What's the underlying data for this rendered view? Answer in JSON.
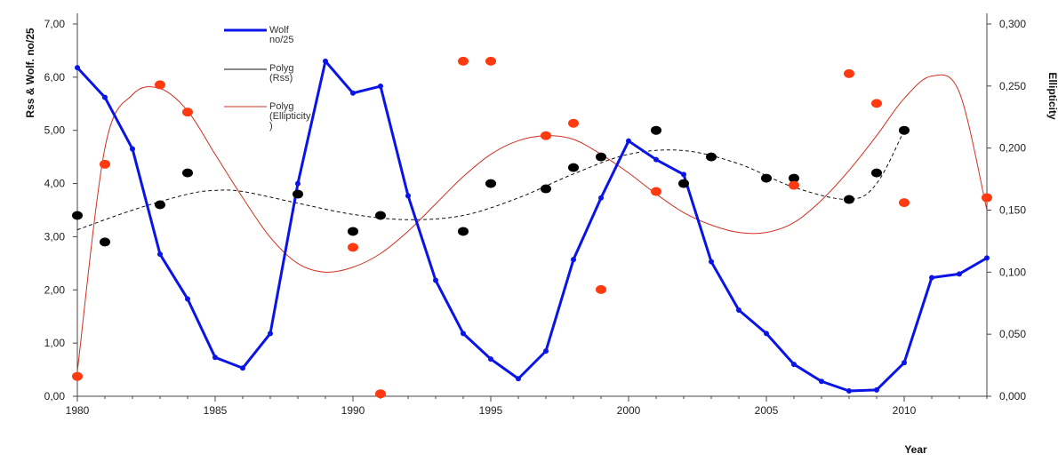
{
  "chart_data": {
    "type": "line",
    "x_axis": {
      "label": "Year",
      "min": 1980,
      "max": 2013,
      "ticks": [
        "1980",
        "1985",
        "1990",
        "1995",
        "2000",
        "2005",
        "2010"
      ]
    },
    "y_left": {
      "label": "Rss & Wolf. no/25",
      "min": 0,
      "max": 7,
      "ticks": [
        "0,00",
        "1,00",
        "2,00",
        "3,00",
        "4,00",
        "5,00",
        "6,00",
        "7,00"
      ]
    },
    "y_right": {
      "label": "Ellipticity",
      "min": 0,
      "max": 0.3,
      "ticks": [
        "0,000",
        "0,050",
        "0,100",
        "0,150",
        "0,200",
        "0,250",
        "0,300"
      ]
    },
    "legend": [
      {
        "line1": "Wolf",
        "line2": "no/25",
        "color": "#0a14e6"
      },
      {
        "line1": "Polyg",
        "line2": "(Rss)",
        "color": "#111111"
      },
      {
        "line1": "Polyg",
        "line2": "(Ellipticity",
        "line3": ")",
        "color": "#d03020"
      }
    ],
    "series": [
      {
        "name": "Wolf no/25",
        "axis": "left",
        "color": "#0a14e6",
        "x": [
          1980,
          1981,
          1982,
          1983,
          1984,
          1985,
          1986,
          1987,
          1988,
          1989,
          1990,
          1991,
          1992,
          1993,
          1994,
          1995,
          1996,
          1997,
          1998,
          1999,
          2000,
          2001,
          2002,
          2003,
          2004,
          2005,
          2006,
          2007,
          2008,
          2009,
          2010,
          2011,
          2012,
          2013
        ],
        "y": [
          6.18,
          5.62,
          4.65,
          2.67,
          1.83,
          0.73,
          0.53,
          1.18,
          4.0,
          6.3,
          5.7,
          5.83,
          3.77,
          2.18,
          1.18,
          0.7,
          0.33,
          0.85,
          2.57,
          3.73,
          4.8,
          4.45,
          4.17,
          2.53,
          1.62,
          1.18,
          0.6,
          0.28,
          0.1,
          0.12,
          0.63,
          2.23,
          2.3,
          2.6
        ]
      },
      {
        "name": "Rss",
        "axis": "left",
        "color": "#000000",
        "x": [
          1980,
          1981,
          1983,
          1984,
          1988,
          1990,
          1991,
          1994,
          1995,
          1997,
          1998,
          1999,
          2001,
          2002,
          2003,
          2005,
          2006,
          2008,
          2009,
          2010
        ],
        "y": [
          3.4,
          2.9,
          3.6,
          4.2,
          3.8,
          3.1,
          3.4,
          3.1,
          4.0,
          3.9,
          4.3,
          4.5,
          5.0,
          4.0,
          4.5,
          4.1,
          4.1,
          3.7,
          4.2,
          5.0
        ]
      },
      {
        "name": "Ellipticity",
        "axis": "right",
        "color": "#ff3a10",
        "x": [
          1980,
          1981,
          1983,
          1984,
          1990,
          1991,
          1994,
          1995,
          1997,
          1998,
          1999,
          2001,
          2006,
          2008,
          2009,
          2010,
          2013
        ],
        "y": [
          0.016,
          0.187,
          0.251,
          0.229,
          0.12,
          0.002,
          0.27,
          0.27,
          0.21,
          0.22,
          0.086,
          0.165,
          0.17,
          0.26,
          0.236,
          0.156,
          0.16
        ]
      },
      {
        "name": "Polyg (Rss)",
        "axis": "left",
        "color": "#111111",
        "x": [
          1980,
          1982,
          1984,
          1985,
          1986,
          1988,
          1990,
          1992,
          1994,
          1996,
          1998,
          2000,
          2002,
          2004,
          2006,
          2008,
          2009,
          2010
        ],
        "y": [
          3.13,
          3.5,
          3.8,
          3.87,
          3.85,
          3.63,
          3.42,
          3.32,
          3.4,
          3.73,
          4.18,
          4.55,
          4.62,
          4.37,
          3.93,
          3.7,
          4.0,
          5.0
        ]
      },
      {
        "name": "Polyg (Ellipticity)",
        "axis": "right",
        "color": "#d03020",
        "x": [
          1980,
          1981,
          1982,
          1983,
          1984,
          1985,
          1986,
          1987,
          1988,
          1989,
          1990,
          1991,
          1992,
          1993,
          1994,
          1995,
          1996,
          1997,
          1998,
          1999,
          2000,
          2001,
          2002,
          2003,
          2004,
          2005,
          2006,
          2007,
          2008,
          2009,
          2010,
          2011,
          2012,
          2013
        ],
        "y": [
          0.02,
          0.2,
          0.243,
          0.248,
          0.23,
          0.195,
          0.16,
          0.128,
          0.107,
          0.1,
          0.104,
          0.115,
          0.133,
          0.155,
          0.177,
          0.195,
          0.206,
          0.21,
          0.207,
          0.195,
          0.18,
          0.163,
          0.148,
          0.138,
          0.132,
          0.132,
          0.14,
          0.158,
          0.182,
          0.21,
          0.24,
          0.258,
          0.245,
          0.15
        ]
      }
    ]
  }
}
